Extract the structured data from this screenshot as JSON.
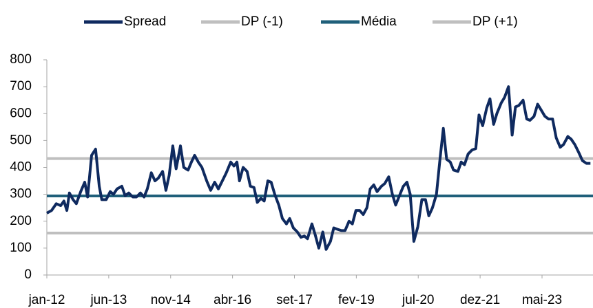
{
  "chart_data": {
    "type": "line",
    "xlim": [
      0,
      150
    ],
    "xticks": [
      {
        "value": 0,
        "label": "jan-12"
      },
      {
        "value": 17,
        "label": "jun-13"
      },
      {
        "value": 34,
        "label": "nov-14"
      },
      {
        "value": 51,
        "label": "abr-16"
      },
      {
        "value": 68,
        "label": "set-17"
      },
      {
        "value": 85,
        "label": "fev-19"
      },
      {
        "value": 102,
        "label": "jul-20"
      },
      {
        "value": 119,
        "label": "dez-21"
      },
      {
        "value": 136,
        "label": "mai-23"
      }
    ],
    "ylim": [
      0,
      800
    ],
    "yticks": [
      0,
      100,
      200,
      300,
      400,
      500,
      600,
      700,
      800
    ],
    "legend": "top",
    "series": [
      {
        "name": "Spread",
        "color": "#0f2a5f",
        "x": [
          0,
          1.3,
          2.6,
          3.8,
          4.7,
          5.5,
          6.2,
          7.2,
          8.1,
          9.3,
          10.4,
          11.2,
          12.3,
          13.4,
          14.4,
          15.1,
          16.3,
          17.4,
          18.3,
          19.3,
          20.6,
          21.5,
          22.5,
          23.6,
          24.6,
          25.7,
          26.7,
          27.6,
          28.7,
          29.7,
          30.6,
          31.8,
          32.7,
          33.6,
          34.6,
          35.5,
          36.7,
          37.6,
          38.8,
          39.7,
          40.6,
          41.6,
          42.6,
          43.9,
          45,
          46.1,
          47.1,
          48.2,
          49.3,
          50.5,
          51.4,
          52.2,
          52.9,
          53.9,
          55,
          55.9,
          56.9,
          57.8,
          58.8,
          59.7,
          60.7,
          61.6,
          62.6,
          63.7,
          64.7,
          65.8,
          66.7,
          67.7,
          68.8,
          69.8,
          70.7,
          71.6,
          72.8,
          73.7,
          74.7,
          75.8,
          76.7,
          77.9,
          78.8,
          79.8,
          80.9,
          81.9,
          83,
          83.9,
          84.9,
          85.9,
          86.9,
          87.9,
          88.8,
          89.8,
          90.7,
          91.9,
          92.8,
          93.9,
          94.9,
          95.8,
          97,
          97.9,
          98.9,
          99.8,
          100.8,
          101.9,
          103,
          104,
          104.9,
          105.9,
          107,
          107.9,
          108.9,
          109.8,
          110.8,
          111.7,
          112.9,
          113.8,
          114.7,
          115.7,
          116.8,
          117.8,
          118.7,
          119.7,
          120.8,
          121.7,
          122.7,
          123.6,
          124.8,
          125.7,
          126.8,
          127.8,
          128.7,
          129.6,
          130.8,
          131.8,
          132.7,
          133.8,
          134.8,
          135.9,
          136.8,
          137.8,
          138.9,
          139.9,
          141,
          141.9,
          143.1,
          144,
          145,
          146.1,
          147.1,
          148.2,
          149.3
        ],
        "values": [
          230,
          240,
          265,
          258,
          275,
          240,
          305,
          280,
          265,
          310,
          345,
          290,
          445,
          468,
          330,
          280,
          280,
          310,
          300,
          320,
          330,
          295,
          305,
          290,
          290,
          305,
          290,
          320,
          380,
          350,
          360,
          385,
          315,
          370,
          480,
          395,
          480,
          400,
          390,
          420,
          445,
          420,
          400,
          350,
          315,
          345,
          320,
          350,
          380,
          420,
          405,
          420,
          350,
          400,
          385,
          330,
          325,
          270,
          285,
          275,
          350,
          345,
          300,
          260,
          210,
          190,
          210,
          175,
          160,
          140,
          145,
          135,
          190,
          150,
          100,
          160,
          95,
          125,
          175,
          170,
          165,
          165,
          200,
          190,
          240,
          240,
          225,
          250,
          320,
          335,
          310,
          330,
          340,
          365,
          300,
          260,
          300,
          330,
          345,
          300,
          125,
          180,
          280,
          280,
          220,
          250,
          300,
          420,
          545,
          430,
          420,
          390,
          385,
          420,
          410,
          450,
          465,
          470,
          595,
          555,
          620,
          655,
          560,
          600,
          640,
          660,
          700,
          520,
          625,
          630,
          650,
          580,
          575,
          590,
          635,
          610,
          590,
          580,
          580,
          510,
          475,
          485,
          515,
          505,
          485,
          455,
          425,
          415,
          415
        ]
      },
      {
        "name": "DP (-1)",
        "color": "#bfbfbf",
        "x": [
          0,
          150
        ],
        "values": [
          156,
          156
        ]
      },
      {
        "name": "Média",
        "color": "#1f5f7a",
        "x": [
          0,
          150
        ],
        "values": [
          294,
          294
        ]
      },
      {
        "name": "DP (+1)",
        "color": "#bfbfbf",
        "x": [
          0,
          150
        ],
        "values": [
          433,
          433
        ]
      }
    ]
  }
}
